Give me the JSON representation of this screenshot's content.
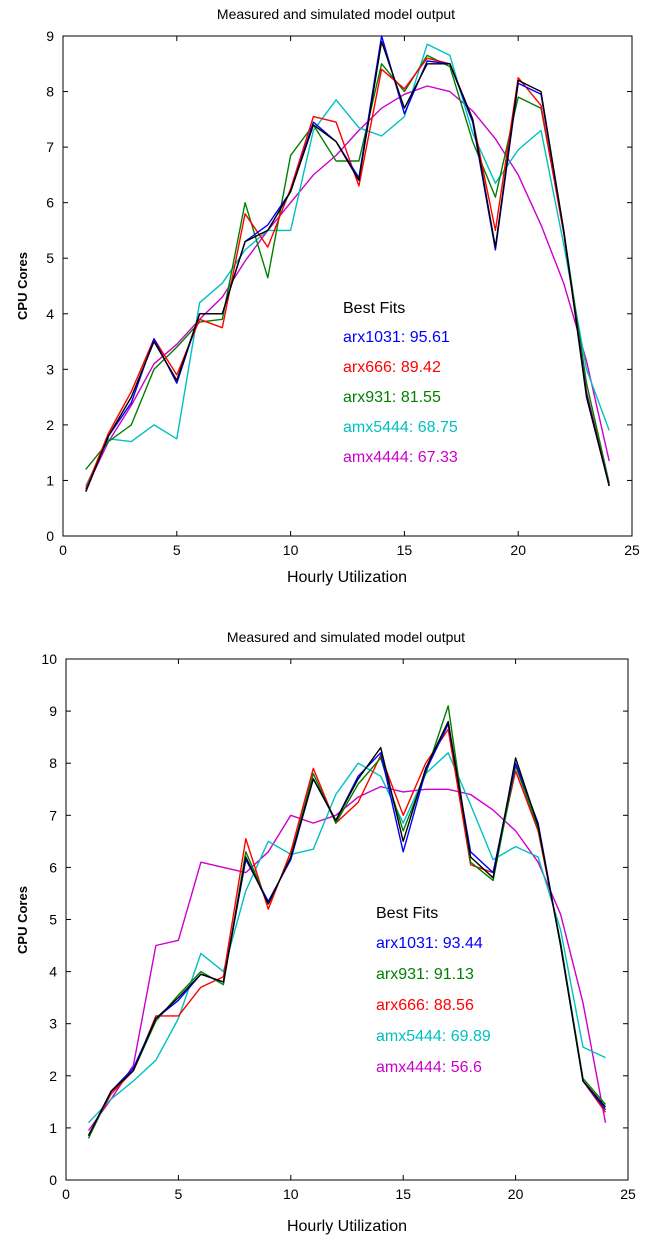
{
  "chart_data": [
    {
      "type": "line",
      "title": "Measured and simulated model output",
      "xlabel": "Hourly Utilization",
      "ylabel": "CPU Cores",
      "xlim": [
        0,
        25
      ],
      "ylim": [
        0,
        9
      ],
      "xticks": [
        0,
        5,
        10,
        15,
        20,
        25
      ],
      "yticks": [
        0,
        1,
        2,
        3,
        4,
        5,
        6,
        7,
        8,
        9
      ],
      "grid": false,
      "x": [
        1,
        2,
        3,
        4,
        5,
        6,
        7,
        8,
        9,
        10,
        11,
        12,
        13,
        14,
        15,
        16,
        17,
        18,
        19,
        20,
        21,
        22,
        23,
        24
      ],
      "legend_title": "Best Fits",
      "series": [
        {
          "name": "measured",
          "color": "#000000",
          "values": [
            0.8,
            1.8,
            2.5,
            3.5,
            2.8,
            4.0,
            4.0,
            5.3,
            5.5,
            6.2,
            7.4,
            7.1,
            6.4,
            8.9,
            7.7,
            8.5,
            8.5,
            7.5,
            5.2,
            8.2,
            8.0,
            5.5,
            2.5,
            0.9
          ]
        },
        {
          "name": "arx1031: 95.61",
          "color": "#0000ff",
          "values": [
            0.8,
            1.8,
            2.4,
            3.55,
            2.75,
            4.0,
            4.0,
            5.3,
            5.6,
            6.2,
            7.45,
            7.1,
            6.45,
            9.0,
            7.6,
            8.55,
            8.5,
            7.45,
            5.15,
            8.15,
            7.95,
            5.5,
            2.55,
            0.9
          ]
        },
        {
          "name": "arx666: 89.42",
          "color": "#ff0000",
          "values": [
            0.85,
            1.85,
            2.6,
            3.55,
            2.9,
            3.9,
            3.75,
            5.8,
            5.2,
            6.25,
            7.55,
            7.45,
            6.3,
            8.4,
            8.05,
            8.6,
            8.5,
            7.5,
            5.5,
            8.25,
            7.75,
            5.45,
            2.6,
            0.9
          ]
        },
        {
          "name": "arx931: 81.55",
          "color": "#008000",
          "values": [
            1.2,
            1.7,
            2.0,
            3.0,
            3.4,
            3.85,
            3.9,
            6.0,
            4.65,
            6.85,
            7.4,
            6.75,
            6.75,
            8.5,
            8.0,
            8.65,
            8.45,
            7.1,
            6.1,
            7.9,
            7.7,
            5.5,
            2.75,
            0.95
          ]
        },
        {
          "name": "amx5444: 68.75",
          "color": "#00c0c0",
          "values": [
            0.9,
            1.75,
            1.7,
            2.0,
            1.75,
            4.2,
            4.55,
            5.15,
            5.5,
            5.5,
            7.3,
            7.85,
            7.35,
            7.2,
            7.55,
            8.85,
            8.65,
            7.25,
            6.35,
            6.95,
            7.3,
            5.25,
            3.0,
            1.9
          ]
        },
        {
          "name": "amx4444: 67.33",
          "color": "#cc00cc",
          "values": [
            0.85,
            1.7,
            2.35,
            3.1,
            3.45,
            3.9,
            4.3,
            4.95,
            5.5,
            6.0,
            6.5,
            6.85,
            7.3,
            7.7,
            7.95,
            8.1,
            8.0,
            7.65,
            7.15,
            6.5,
            5.6,
            4.55,
            3.15,
            1.35
          ]
        }
      ]
    },
    {
      "type": "line",
      "title": "Measured and simulated model output",
      "xlabel": "Hourly Utilization",
      "ylabel": "CPU Cores",
      "xlim": [
        0,
        25
      ],
      "ylim": [
        0,
        10
      ],
      "xticks": [
        0,
        5,
        10,
        15,
        20,
        25
      ],
      "yticks": [
        0,
        1,
        2,
        3,
        4,
        5,
        6,
        7,
        8,
        9,
        10
      ],
      "grid": false,
      "x": [
        1,
        2,
        3,
        4,
        5,
        6,
        7,
        8,
        9,
        10,
        11,
        12,
        13,
        14,
        15,
        16,
        17,
        18,
        19,
        20,
        21,
        22,
        23,
        24
      ],
      "legend_title": "Best Fits",
      "series": [
        {
          "name": "measured",
          "color": "#000000",
          "values": [
            0.85,
            1.7,
            2.1,
            3.1,
            3.5,
            3.95,
            3.8,
            6.2,
            5.3,
            6.2,
            7.7,
            6.9,
            7.7,
            8.3,
            6.5,
            7.9,
            8.8,
            6.2,
            5.8,
            8.1,
            6.8,
            4.5,
            1.9,
            1.4
          ]
        },
        {
          "name": "arx1031: 93.44",
          "color": "#0000ff",
          "values": [
            0.85,
            1.7,
            2.15,
            3.1,
            3.45,
            3.95,
            3.8,
            6.15,
            5.35,
            6.15,
            7.7,
            6.9,
            7.75,
            8.2,
            6.3,
            7.85,
            8.75,
            6.3,
            5.9,
            8.0,
            6.85,
            4.5,
            1.9,
            1.35
          ]
        },
        {
          "name": "arx931: 91.13",
          "color": "#008000",
          "values": [
            0.8,
            1.7,
            2.1,
            3.05,
            3.55,
            4.0,
            3.75,
            6.3,
            5.3,
            6.2,
            7.8,
            6.85,
            7.6,
            8.1,
            6.7,
            7.8,
            9.1,
            6.1,
            5.75,
            7.95,
            6.75,
            4.55,
            1.95,
            1.45
          ]
        },
        {
          "name": "arx666: 88.56",
          "color": "#ff0000",
          "values": [
            0.85,
            1.65,
            2.1,
            3.15,
            3.15,
            3.7,
            3.9,
            6.55,
            5.2,
            6.3,
            7.9,
            6.85,
            7.25,
            8.15,
            7.0,
            8.0,
            8.65,
            6.05,
            5.9,
            7.85,
            6.7,
            4.55,
            1.9,
            1.3
          ]
        },
        {
          "name": "amx5444: 69.89",
          "color": "#00c0c0",
          "values": [
            1.1,
            1.55,
            1.9,
            2.3,
            3.1,
            4.35,
            4.0,
            5.55,
            6.5,
            6.25,
            6.35,
            7.4,
            8.0,
            7.75,
            6.85,
            7.8,
            8.2,
            7.2,
            6.15,
            6.4,
            6.2,
            4.8,
            2.55,
            2.35
          ]
        },
        {
          "name": "amx4444: 56.6",
          "color": "#cc00cc",
          "values": [
            0.95,
            1.55,
            2.2,
            4.5,
            4.6,
            6.1,
            6.0,
            5.9,
            6.3,
            7.0,
            6.85,
            7.0,
            7.35,
            7.55,
            7.45,
            7.5,
            7.5,
            7.4,
            7.1,
            6.7,
            6.1,
            5.1,
            3.4,
            1.1
          ]
        }
      ]
    }
  ]
}
